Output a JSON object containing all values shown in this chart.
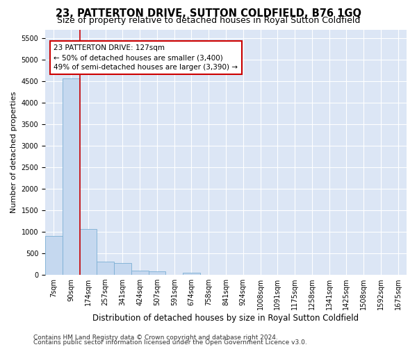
{
  "title": "23, PATTERTON DRIVE, SUTTON COLDFIELD, B76 1GQ",
  "subtitle": "Size of property relative to detached houses in Royal Sutton Coldfield",
  "xlabel": "Distribution of detached houses by size in Royal Sutton Coldfield",
  "ylabel": "Number of detached properties",
  "footnote1": "Contains HM Land Registry data © Crown copyright and database right 2024.",
  "footnote2": "Contains public sector information licensed under the Open Government Licence v3.0.",
  "bar_labels": [
    "7sqm",
    "90sqm",
    "174sqm",
    "257sqm",
    "341sqm",
    "424sqm",
    "507sqm",
    "591sqm",
    "674sqm",
    "758sqm",
    "841sqm",
    "924sqm",
    "1008sqm",
    "1091sqm",
    "1175sqm",
    "1258sqm",
    "1341sqm",
    "1425sqm",
    "1508sqm",
    "1592sqm",
    "1675sqm"
  ],
  "bar_values": [
    900,
    4570,
    1060,
    300,
    280,
    100,
    85,
    0,
    55,
    0,
    0,
    0,
    0,
    0,
    0,
    0,
    0,
    0,
    0,
    0,
    0
  ],
  "bar_color": "#c5d8ef",
  "bar_edge_color": "#7bafd4",
  "vline_x": 1.5,
  "vline_color": "#cc0000",
  "annotation_title": "23 PATTERTON DRIVE: 127sqm",
  "annotation_line1": "← 50% of detached houses are smaller (3,400)",
  "annotation_line2": "49% of semi-detached houses are larger (3,390) →",
  "annotation_box_color": "#cc0000",
  "ylim": [
    0,
    5700
  ],
  "yticks": [
    0,
    500,
    1000,
    1500,
    2000,
    2500,
    3000,
    3500,
    4000,
    4500,
    5000,
    5500
  ],
  "bg_color": "#dce6f5",
  "fig_bg_color": "#ffffff",
  "grid_color": "#ffffff",
  "title_fontsize": 10.5,
  "subtitle_fontsize": 9,
  "ylabel_fontsize": 8,
  "xlabel_fontsize": 8.5,
  "tick_fontsize": 7,
  "footnote_fontsize": 6.5
}
